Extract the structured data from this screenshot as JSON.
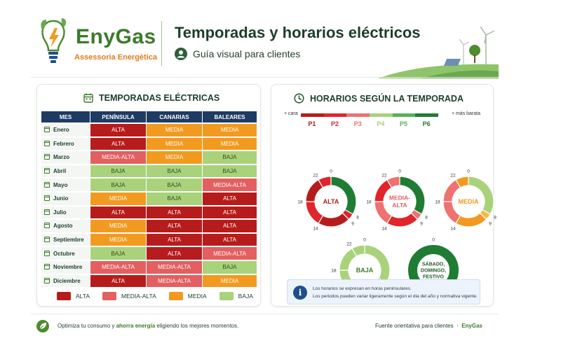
{
  "header": {
    "brand_name": "EnyGas",
    "brand_sub": "Assessoria Energètica",
    "title": "Temporadas y horarios eléctricos",
    "subtitle": "Guía visual para clientes"
  },
  "seasons": {
    "title": "TEMPORADAS ELÉCTRICAS",
    "columns": [
      "MES",
      "PENÍNSULA",
      "CANARIAS",
      "BALEARES"
    ],
    "rows": [
      {
        "month": "Enero",
        "values": [
          "ALTA",
          "MEDIA",
          "MEDIA"
        ]
      },
      {
        "month": "Febrero",
        "values": [
          "ALTA",
          "MEDIA",
          "MEDIA"
        ]
      },
      {
        "month": "Marzo",
        "values": [
          "MEDIA-ALTA",
          "MEDIA",
          "BAJA"
        ]
      },
      {
        "month": "Abril",
        "values": [
          "BAJA",
          "BAJA",
          "BAJA"
        ]
      },
      {
        "month": "Mayo",
        "values": [
          "BAJA",
          "BAJA",
          "MEDIA-ALTA"
        ]
      },
      {
        "month": "Junio",
        "values": [
          "MEDIA",
          "BAJA",
          "ALTA"
        ]
      },
      {
        "month": "Julio",
        "values": [
          "ALTA",
          "ALTA",
          "ALTA"
        ]
      },
      {
        "month": "Agosto",
        "values": [
          "MEDIA",
          "ALTA",
          "ALTA"
        ]
      },
      {
        "month": "Septiembre",
        "values": [
          "MEDIA",
          "ALTA",
          "ALTA"
        ]
      },
      {
        "month": "Octubre",
        "values": [
          "BAJA",
          "ALTA",
          "MEDIA-ALTA"
        ]
      },
      {
        "month": "Noviembre",
        "values": [
          "MEDIA-ALTA",
          "MEDIA-ALTA",
          "BAJA"
        ]
      },
      {
        "month": "Diciembre",
        "values": [
          "ALTA",
          "MEDIA-ALTA",
          "MEDIA"
        ]
      }
    ],
    "legend": [
      {
        "label": "ALTA",
        "color": "#b71c1c"
      },
      {
        "label": "MEDIA-ALTA",
        "color": "#e35f60"
      },
      {
        "label": "MEDIA",
        "color": "#f29a1f"
      },
      {
        "label": "BAJA",
        "color": "#a9d27b"
      }
    ]
  },
  "schedules": {
    "title": "HORARIOS SEGÚN LA TEMPORADA",
    "more_expensive": "+ cara",
    "cheaper": "+ más barata",
    "periods": [
      {
        "label": "P1",
        "color": "#b71c1c"
      },
      {
        "label": "P2",
        "color": "#e0252b"
      },
      {
        "label": "P3",
        "color": "#ef7170"
      },
      {
        "label": "P4",
        "color": "#a9d27b"
      },
      {
        "label": "P5",
        "color": "#57b257"
      },
      {
        "label": "P6",
        "color": "#1e7d32"
      }
    ],
    "hour_labels": [
      "0",
      "8",
      "9",
      "14",
      "18",
      "22"
    ],
    "donuts": [
      {
        "label": "ALTA",
        "label_lines": [
          "ALTA"
        ],
        "label_color": "#b71c1c",
        "segments": [
          {
            "from": 0,
            "to": 8,
            "color": "#1e7d32"
          },
          {
            "from": 8,
            "to": 9,
            "color": "#e0252b"
          },
          {
            "from": 9,
            "to": 14,
            "color": "#b71c1c"
          },
          {
            "from": 14,
            "to": 18,
            "color": "#e0252b"
          },
          {
            "from": 18,
            "to": 22,
            "color": "#b71c1c"
          },
          {
            "from": 22,
            "to": 24,
            "color": "#e0252b"
          }
        ]
      },
      {
        "label": "MEDIA-ALTA",
        "label_lines": [
          "MEDIA-",
          "ALTA"
        ],
        "label_color": "#e35f60",
        "segments": [
          {
            "from": 0,
            "to": 8,
            "color": "#1e7d32"
          },
          {
            "from": 8,
            "to": 9,
            "color": "#ef7170"
          },
          {
            "from": 9,
            "to": 14,
            "color": "#e0252b"
          },
          {
            "from": 14,
            "to": 18,
            "color": "#ef7170"
          },
          {
            "from": 18,
            "to": 22,
            "color": "#e0252b"
          },
          {
            "from": 22,
            "to": 24,
            "color": "#ef7170"
          }
        ]
      },
      {
        "label": "MEDIA",
        "label_lines": [
          "MEDIA"
        ],
        "label_color": "#f29a1f",
        "segments": [
          {
            "from": 0,
            "to": 8,
            "color": "#a9d27b"
          },
          {
            "from": 8,
            "to": 9,
            "color": "#f5b94a"
          },
          {
            "from": 9,
            "to": 14,
            "color": "#f29a1f"
          },
          {
            "from": 14,
            "to": 18,
            "color": "#ef7170"
          },
          {
            "from": 18,
            "to": 22,
            "color": "#ef7170"
          },
          {
            "from": 22,
            "to": 24,
            "color": "#f29a1f"
          }
        ]
      },
      {
        "label": "BAJA",
        "label_lines": [
          "BAJA"
        ],
        "label_color": "#3c7a2c",
        "segments": [
          {
            "from": 0,
            "to": 8,
            "color": "#a9d27b"
          },
          {
            "from": 8,
            "to": 9,
            "color": "#1e7d32"
          },
          {
            "from": 9,
            "to": 14,
            "color": "#a9d27b"
          },
          {
            "from": 14,
            "to": 18,
            "color": "#a9d27b"
          },
          {
            "from": 18,
            "to": 22,
            "color": "#a9d27b"
          },
          {
            "from": 22,
            "to": 24,
            "color": "#a9d27b"
          }
        ]
      },
      {
        "label": "SÁBADO, DOMINGO, FESTIVO",
        "label_lines": [
          "SÁBADO,",
          "DOMINGO,",
          "FESTIVO"
        ],
        "label_color": "#1e5a25",
        "segments": [
          {
            "from": 0,
            "to": 24,
            "color": "#1e7d32"
          }
        ]
      }
    ],
    "info_lines": [
      "Los horarios se expresan en horas peninsulares.",
      "Los periodos pueden variar ligeramente según el día del año y normativa vigente."
    ]
  },
  "footer": {
    "text_before": "Optimiza tu consumo y ",
    "text_bold": "ahorra energía",
    "text_after": " eligiendo los mejores momentos.",
    "source": "Fuente orientativa para clientes",
    "separator": "·",
    "brand": "EnyGas"
  }
}
